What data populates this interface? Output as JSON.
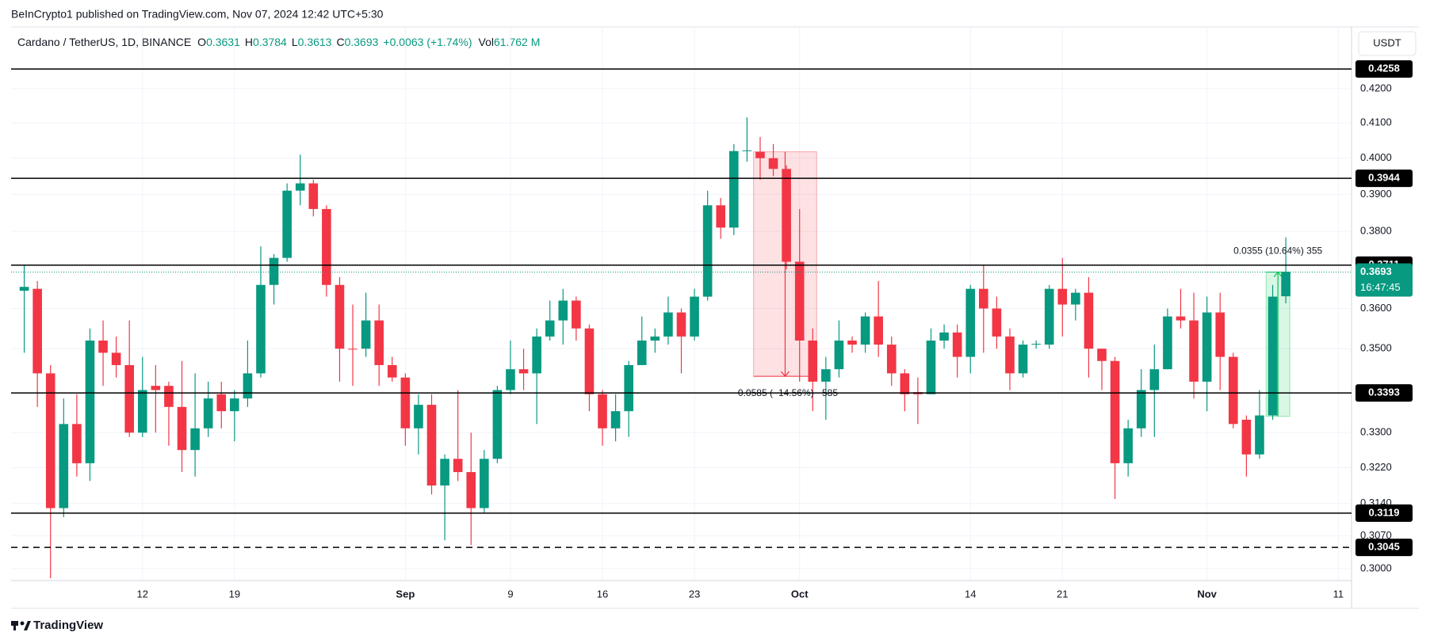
{
  "chart_data": {
    "type": "candlestick",
    "published": "BeInCrypto1 published on TradingView.com, Nov 07, 2024 12:42 UTC+5:30",
    "symbol": "Cardano / TetherUS, 1D, BINANCE",
    "legend": [
      {
        "label": "O",
        "value": 0.3631
      },
      {
        "label": "H",
        "value": 0.3784
      },
      {
        "label": "L",
        "value": 0.3613
      },
      {
        "label": "C",
        "value": 0.3693
      }
    ],
    "change": "+0.0063 (+1.74%)",
    "volume_label": "Vol",
    "volume": "61.762 M",
    "currency": "USDT",
    "footer": "TradingView",
    "up_color": "#089981",
    "down_color": "#f23645",
    "log": true,
    "grid": true,
    "x": [
      "2024-08-03",
      "2024-08-04",
      "2024-08-05",
      "2024-08-06",
      "2024-08-07",
      "2024-08-08",
      "2024-08-09",
      "2024-08-10",
      "2024-08-11",
      "2024-08-12",
      "2024-08-13",
      "2024-08-14",
      "2024-08-15",
      "2024-08-16",
      "2024-08-17",
      "2024-08-18",
      "2024-08-19",
      "2024-08-20",
      "2024-08-21",
      "2024-08-22",
      "2024-08-23",
      "2024-08-24",
      "2024-08-25",
      "2024-08-26",
      "2024-08-27",
      "2024-08-28",
      "2024-08-29",
      "2024-08-30",
      "2024-08-31",
      "2024-09-01",
      "2024-09-02",
      "2024-09-03",
      "2024-09-04",
      "2024-09-05",
      "2024-09-06",
      "2024-09-07",
      "2024-09-08",
      "2024-09-09",
      "2024-09-10",
      "2024-09-11",
      "2024-09-12",
      "2024-09-13",
      "2024-09-14",
      "2024-09-15",
      "2024-09-16",
      "2024-09-17",
      "2024-09-18",
      "2024-09-19",
      "2024-09-20",
      "2024-09-21",
      "2024-09-22",
      "2024-09-23",
      "2024-09-24",
      "2024-09-25",
      "2024-09-26",
      "2024-09-27",
      "2024-09-28",
      "2024-09-29",
      "2024-09-30",
      "2024-10-01",
      "2024-10-02",
      "2024-10-03",
      "2024-10-04",
      "2024-10-05",
      "2024-10-06",
      "2024-10-07",
      "2024-10-08",
      "2024-10-09",
      "2024-10-10",
      "2024-10-11",
      "2024-10-12",
      "2024-10-13",
      "2024-10-14",
      "2024-10-15",
      "2024-10-16",
      "2024-10-17",
      "2024-10-18",
      "2024-10-19",
      "2024-10-20",
      "2024-10-21",
      "2024-10-22",
      "2024-10-23",
      "2024-10-24",
      "2024-10-25",
      "2024-10-26",
      "2024-10-27",
      "2024-10-28",
      "2024-10-29",
      "2024-10-30",
      "2024-10-31",
      "2024-11-01",
      "2024-11-02",
      "2024-11-03",
      "2024-11-04",
      "2024-11-05",
      "2024-11-06",
      "2024-11-07"
    ],
    "open": [
      0.3645,
      0.365,
      0.344,
      0.313,
      0.332,
      0.323,
      0.352,
      0.349,
      0.346,
      0.33,
      0.341,
      0.341,
      0.336,
      0.326,
      0.331,
      0.339,
      0.335,
      0.338,
      0.344,
      0.366,
      0.373,
      0.391,
      0.393,
      0.386,
      0.366,
      0.35,
      0.35,
      0.357,
      0.346,
      0.343,
      0.331,
      0.3365,
      0.318,
      0.324,
      0.321,
      0.313,
      0.324,
      0.34,
      0.345,
      0.344,
      0.353,
      0.357,
      0.362,
      0.355,
      0.339,
      0.331,
      0.335,
      0.346,
      0.352,
      0.353,
      0.359,
      0.353,
      0.363,
      0.387,
      0.381,
      0.402,
      0.4018,
      0.4,
      0.397,
      0.372,
      0.352,
      0.342,
      0.345,
      0.352,
      0.351,
      0.358,
      0.351,
      0.344,
      0.3395,
      0.339,
      0.352,
      0.354,
      0.348,
      0.365,
      0.36,
      0.353,
      0.344,
      0.351,
      0.351,
      0.365,
      0.361,
      0.364,
      0.35,
      0.347,
      0.323,
      0.331,
      0.34,
      0.345,
      0.358,
      0.357,
      0.342,
      0.359,
      0.348,
      0.333,
      0.325,
      0.334,
      0.3631
    ],
    "high": [
      0.371,
      0.367,
      0.346,
      0.338,
      0.339,
      0.355,
      0.357,
      0.353,
      0.357,
      0.348,
      0.346,
      0.342,
      0.347,
      0.344,
      0.342,
      0.342,
      0.34,
      0.352,
      0.376,
      0.374,
      0.393,
      0.401,
      0.394,
      0.387,
      0.368,
      0.361,
      0.364,
      0.361,
      0.348,
      0.344,
      0.339,
      0.339,
      0.325,
      0.34,
      0.33,
      0.326,
      0.341,
      0.352,
      0.35,
      0.355,
      0.362,
      0.365,
      0.363,
      0.356,
      0.34,
      0.339,
      0.347,
      0.358,
      0.355,
      0.363,
      0.36,
      0.365,
      0.391,
      0.389,
      0.404,
      0.4116,
      0.406,
      0.404,
      0.398,
      0.386,
      0.355,
      0.348,
      0.357,
      0.353,
      0.359,
      0.367,
      0.353,
      0.345,
      0.343,
      0.355,
      0.356,
      0.356,
      0.366,
      0.371,
      0.363,
      0.355,
      0.352,
      0.352,
      0.366,
      0.373,
      0.365,
      0.368,
      0.35,
      0.348,
      0.333,
      0.345,
      0.351,
      0.36,
      0.365,
      0.364,
      0.363,
      0.364,
      0.349,
      0.334,
      0.34,
      0.366,
      0.3784
    ],
    "low": [
      0.349,
      0.336,
      0.298,
      0.311,
      0.32,
      0.319,
      0.341,
      0.343,
      0.329,
      0.329,
      0.33,
      0.327,
      0.321,
      0.32,
      0.329,
      0.331,
      0.328,
      0.336,
      0.343,
      0.361,
      0.372,
      0.387,
      0.384,
      0.363,
      0.342,
      0.341,
      0.348,
      0.341,
      0.342,
      0.327,
      0.325,
      0.316,
      0.306,
      0.319,
      0.305,
      0.312,
      0.323,
      0.339,
      0.34,
      0.332,
      0.352,
      0.351,
      0.352,
      0.335,
      0.327,
      0.328,
      0.329,
      0.346,
      0.349,
      0.351,
      0.344,
      0.352,
      0.362,
      0.378,
      0.379,
      0.399,
      0.394,
      0.395,
      0.37,
      0.342,
      0.335,
      0.333,
      0.343,
      0.349,
      0.349,
      0.348,
      0.341,
      0.335,
      0.332,
      0.339,
      0.35,
      0.343,
      0.344,
      0.349,
      0.35,
      0.34,
      0.343,
      0.35,
      0.35,
      0.353,
      0.357,
      0.343,
      0.34,
      0.315,
      0.32,
      0.329,
      0.329,
      0.345,
      0.355,
      0.338,
      0.335,
      0.34,
      0.331,
      0.32,
      0.324,
      0.333,
      0.3613
    ],
    "close": [
      0.3655,
      0.344,
      0.313,
      0.332,
      0.323,
      0.352,
      0.349,
      0.346,
      0.33,
      0.34,
      0.34,
      0.336,
      0.326,
      0.331,
      0.338,
      0.335,
      0.338,
      0.344,
      0.366,
      0.373,
      0.391,
      0.393,
      0.386,
      0.366,
      0.35,
      0.3498,
      0.357,
      0.346,
      0.343,
      0.331,
      0.3365,
      0.318,
      0.324,
      0.321,
      0.313,
      0.324,
      0.34,
      0.345,
      0.344,
      0.353,
      0.357,
      0.362,
      0.355,
      0.339,
      0.331,
      0.335,
      0.346,
      0.352,
      0.353,
      0.359,
      0.353,
      0.363,
      0.387,
      0.381,
      0.402,
      0.4022,
      0.4,
      0.397,
      0.372,
      0.352,
      0.342,
      0.345,
      0.352,
      0.351,
      0.358,
      0.351,
      0.344,
      0.339,
      0.339,
      0.352,
      0.354,
      0.348,
      0.365,
      0.36,
      0.353,
      0.344,
      0.351,
      0.3512,
      0.365,
      0.361,
      0.364,
      0.35,
      0.347,
      0.323,
      0.331,
      0.34,
      0.345,
      0.358,
      0.357,
      0.342,
      0.359,
      0.348,
      0.332,
      0.325,
      0.334,
      0.363,
      0.3693
    ],
    "xlim": [
      "2024-08-02",
      "2024-11-12"
    ],
    "xticks": [
      {
        "value": "2024-08-12",
        "label": "12"
      },
      {
        "value": "2024-08-19",
        "label": "19"
      },
      {
        "value": "2024-09-01",
        "label": "Sep"
      },
      {
        "value": "2024-09-09",
        "label": "9"
      },
      {
        "value": "2024-09-16",
        "label": "16"
      },
      {
        "value": "2024-09-23",
        "label": "23"
      },
      {
        "value": "2024-10-01",
        "label": "Oct"
      },
      {
        "value": "2024-10-14",
        "label": "14"
      },
      {
        "value": "2024-10-21",
        "label": "21"
      },
      {
        "value": "2024-11-01",
        "label": "Nov"
      },
      {
        "value": "2024-11-11",
        "label": "11"
      }
    ],
    "ylim": [
      0.2975,
      0.4383
    ],
    "yticks": [
      {
        "value": 0.42,
        "label": "0.4200"
      },
      {
        "value": 0.41,
        "label": "0.4100"
      },
      {
        "value": 0.4,
        "label": "0.4000"
      },
      {
        "value": 0.39,
        "label": "0.3900"
      },
      {
        "value": 0.38,
        "label": "0.3800"
      },
      {
        "value": 0.36,
        "label": "0.3600"
      },
      {
        "value": 0.35,
        "label": "0.3500"
      },
      {
        "value": 0.33,
        "label": "0.3300"
      },
      {
        "value": 0.322,
        "label": "0.3220"
      },
      {
        "value": 0.314,
        "label": "0.3140"
      },
      {
        "value": 0.307,
        "label": "0.3070"
      },
      {
        "value": 0.3,
        "label": "0.3000"
      }
    ],
    "levels": [
      0.4258,
      0.3944,
      0.3711,
      0.3393,
      0.3119
    ],
    "dashed_levels": [
      0.3045
    ],
    "last_price": 0.3693,
    "countdown": "16:47:45",
    "measures": [
      {
        "start": {
          "x": "2024-09-28",
          "y": 0.4018
        },
        "end": {
          "x": "2024-10-02",
          "y": 0.3433
        },
        "text": "−0.0585 (−14.56%) −585",
        "color": "#f23645"
      },
      {
        "start": {
          "x": "2024-11-06",
          "y": 0.3338
        },
        "end": {
          "x": "2024-11-07",
          "y": 0.3693
        },
        "text": "0.0355 (10.64%) 355",
        "color": "#00c853"
      }
    ]
  }
}
